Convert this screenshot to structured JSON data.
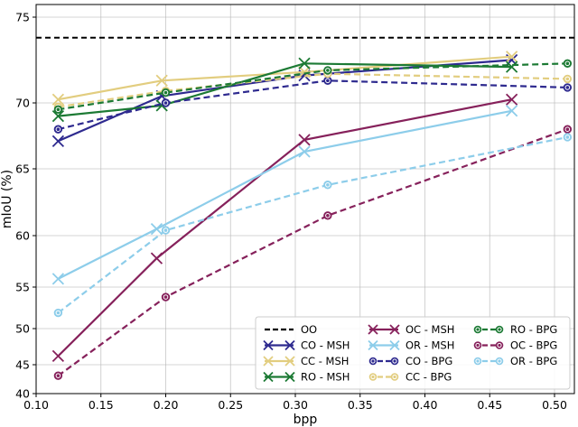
{
  "chart_data": {
    "type": "line",
    "xlabel": "bpp",
    "ylabel": "mIoU (%)",
    "xlim": [
      0.1,
      0.515
    ],
    "ylim": [
      40,
      76
    ],
    "xticks": [
      0.1,
      0.15,
      0.2,
      0.25,
      0.3,
      0.35,
      0.4,
      0.45,
      0.5
    ],
    "xtick_labels": [
      "0.10",
      "0.15",
      "0.20",
      "0.25",
      "0.30",
      "0.35",
      "0.40",
      "0.45",
      "0.50"
    ],
    "yticks": [
      40,
      45,
      50,
      55,
      60,
      65,
      70,
      75
    ],
    "ytick_labels": [
      "40",
      "45",
      "50",
      "55",
      "60",
      "65",
      "70",
      "75"
    ],
    "yscale": "mixed-nonlinear",
    "grid": true,
    "legend_position": "lower-right",
    "reference_line": {
      "name": "OO",
      "value": 73.8,
      "color": "#000000",
      "style": "dashed"
    },
    "series": [
      {
        "name": "CO - MSH",
        "color": "#2e2a8f",
        "style": "solid",
        "marker": "x",
        "x": [
          0.117,
          0.197,
          0.307,
          0.467
        ],
        "y": [
          67.1,
          70.4,
          71.6,
          72.5
        ]
      },
      {
        "name": "CC - MSH",
        "color": "#e2cd7f",
        "style": "solid",
        "marker": "x",
        "x": [
          0.117,
          0.197,
          0.307,
          0.467
        ],
        "y": [
          70.2,
          71.3,
          71.8,
          72.7
        ]
      },
      {
        "name": "RO - MSH",
        "color": "#1c7a34",
        "style": "solid",
        "marker": "x",
        "x": [
          0.117,
          0.197,
          0.307,
          0.467
        ],
        "y": [
          69.0,
          69.8,
          72.3,
          72.1
        ]
      },
      {
        "name": "OC - MSH",
        "color": "#86215b",
        "style": "solid",
        "marker": "x",
        "x": [
          0.117,
          0.193,
          0.307,
          0.467
        ],
        "y": [
          46.2,
          57.8,
          67.2,
          70.2
        ]
      },
      {
        "name": "OR - MSH",
        "color": "#8dcdea",
        "style": "solid",
        "marker": "x",
        "x": [
          0.117,
          0.193,
          0.307,
          0.467
        ],
        "y": [
          55.8,
          60.5,
          66.3,
          69.4
        ]
      },
      {
        "name": "CO - BPG",
        "color": "#2e2a8f",
        "style": "dashed",
        "marker": "o",
        "x": [
          0.117,
          0.2,
          0.325,
          0.51
        ],
        "y": [
          68.0,
          70.0,
          71.3,
          70.9
        ]
      },
      {
        "name": "CC - BPG",
        "color": "#e2cd7f",
        "style": "dashed",
        "marker": "o",
        "x": [
          0.117,
          0.2,
          0.325,
          0.51
        ],
        "y": [
          69.7,
          70.7,
          71.7,
          71.4
        ]
      },
      {
        "name": "RO - BPG",
        "color": "#1c7a34",
        "style": "dashed",
        "marker": "o",
        "x": [
          0.117,
          0.2,
          0.325,
          0.51
        ],
        "y": [
          69.5,
          70.6,
          71.9,
          72.3
        ]
      },
      {
        "name": "OC - BPG",
        "color": "#86215b",
        "style": "dashed",
        "marker": "o",
        "x": [
          0.117,
          0.2,
          0.325,
          0.51
        ],
        "y": [
          43.1,
          53.8,
          61.5,
          68.0
        ]
      },
      {
        "name": "OR - BPG",
        "color": "#8dcdea",
        "style": "dashed",
        "marker": "o",
        "x": [
          0.117,
          0.2,
          0.325,
          0.51
        ],
        "y": [
          51.9,
          60.4,
          63.8,
          67.4
        ]
      }
    ]
  }
}
